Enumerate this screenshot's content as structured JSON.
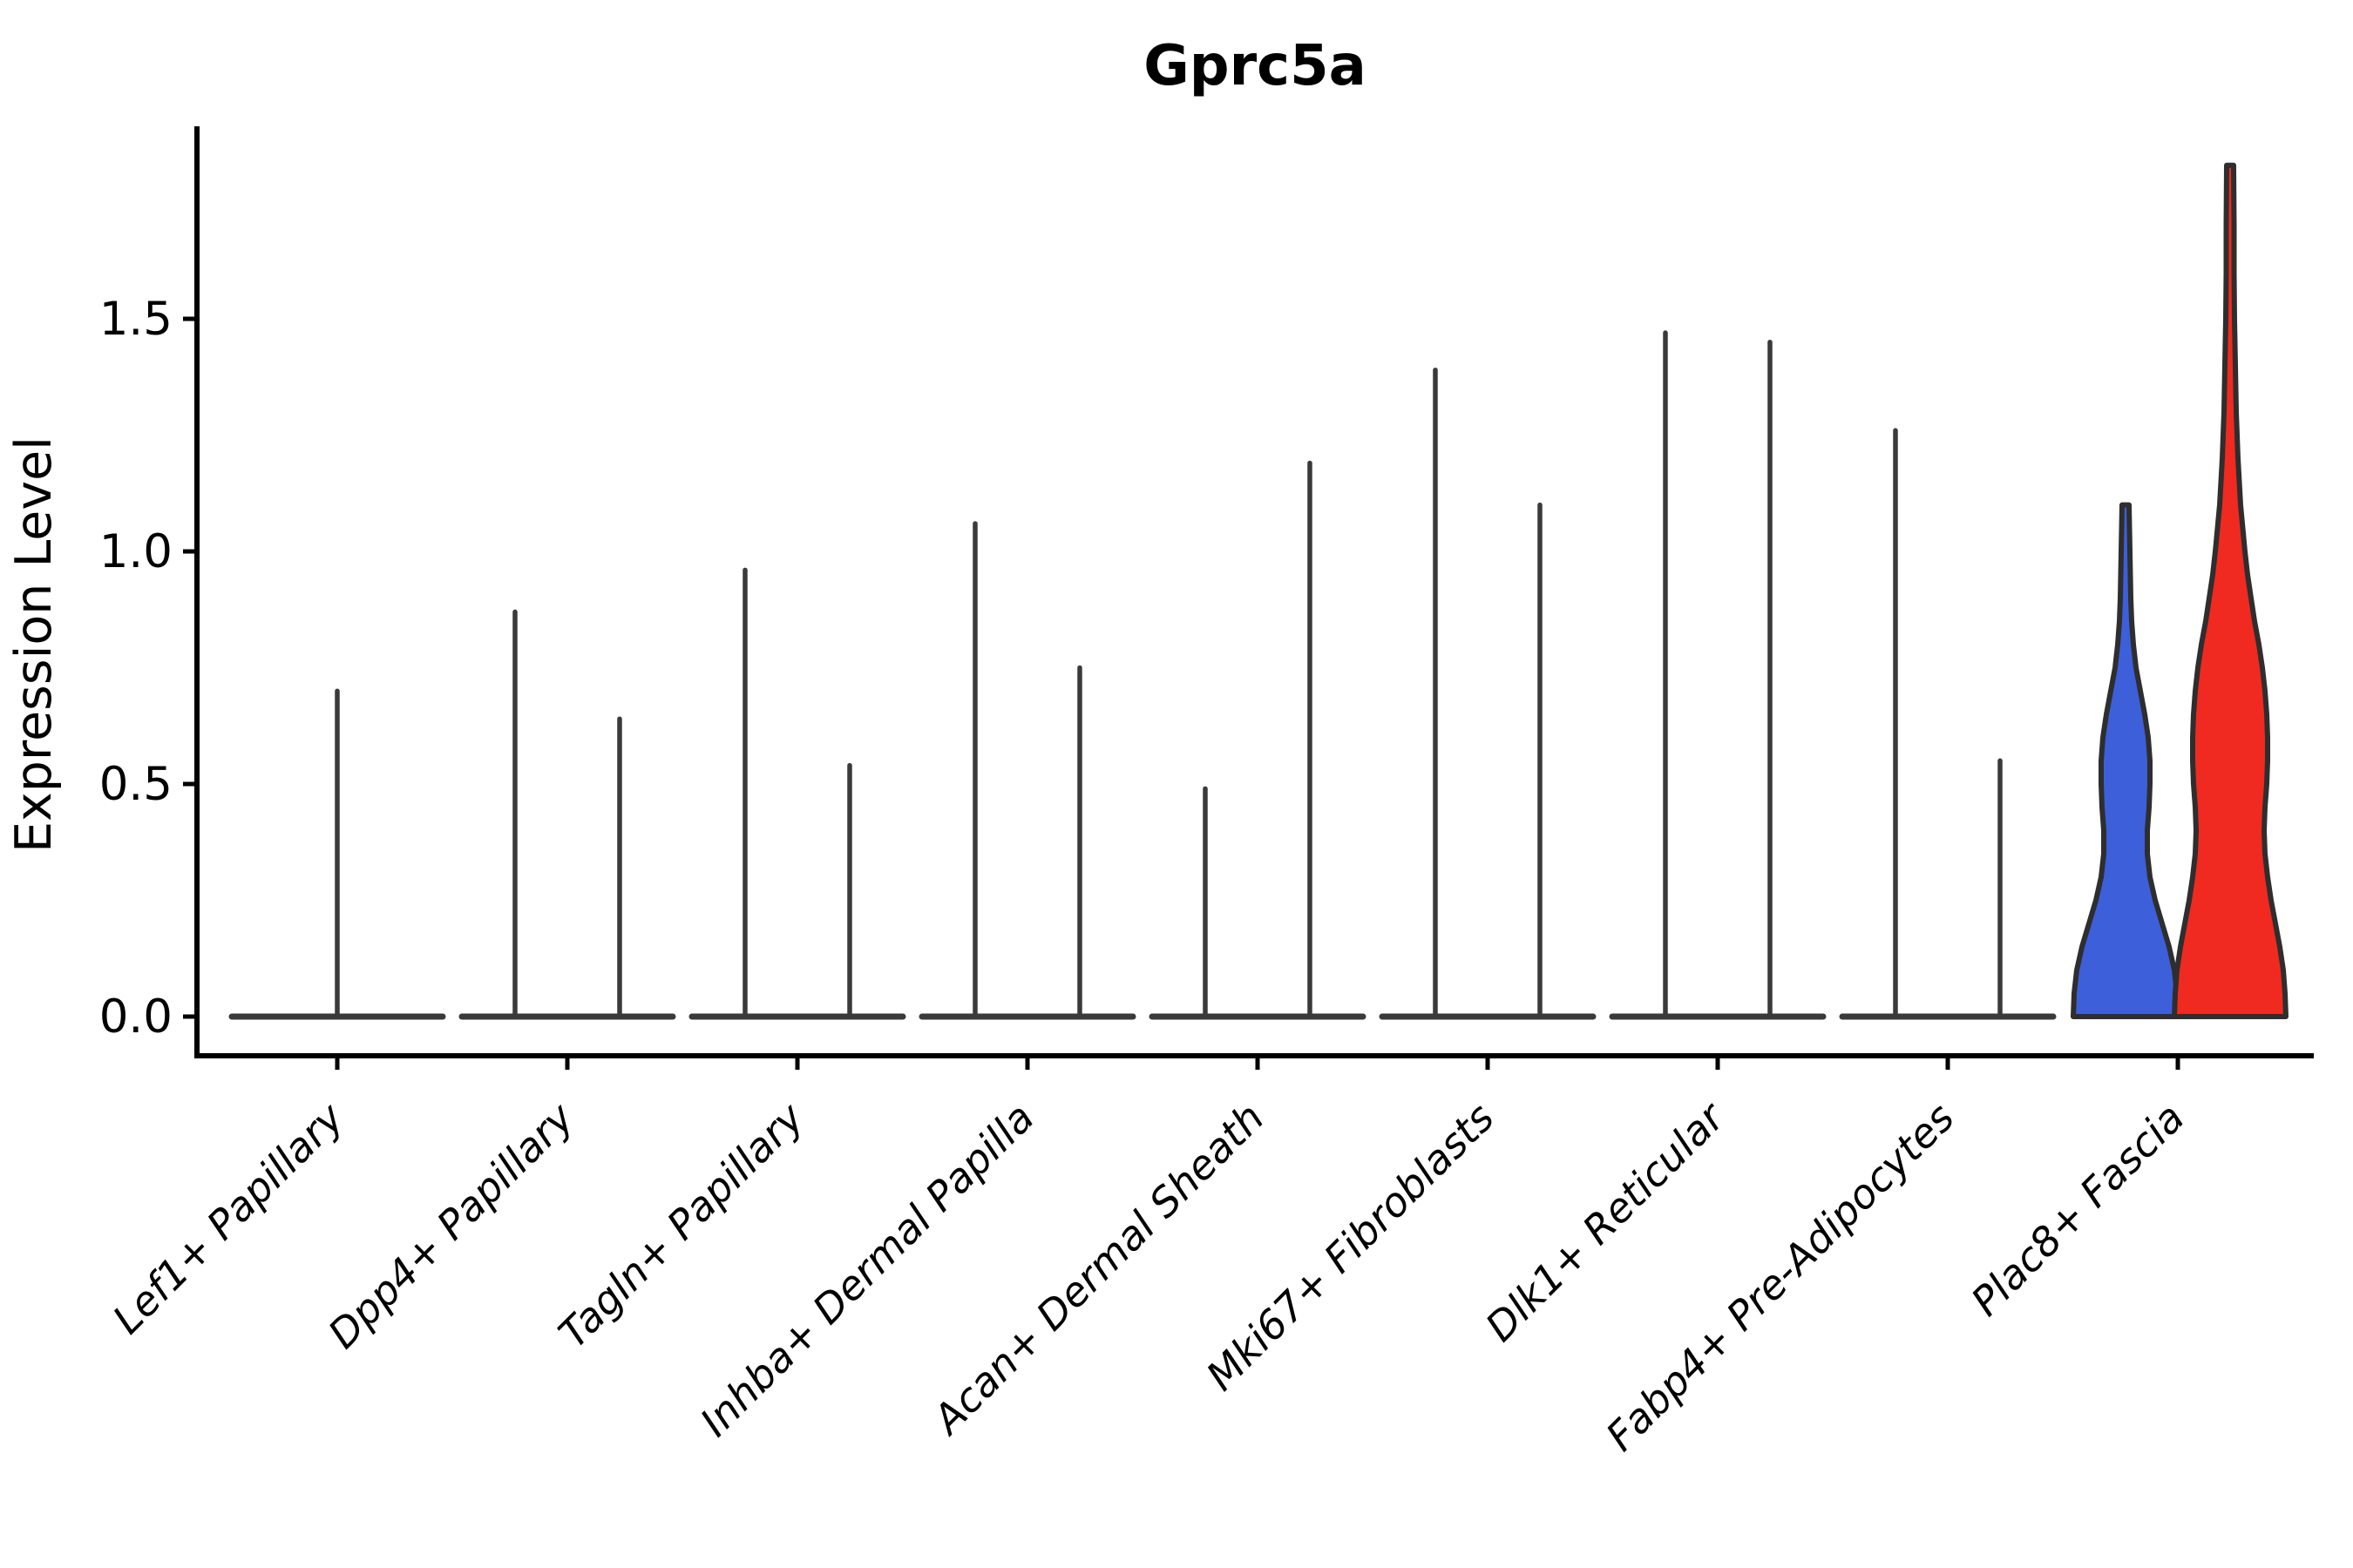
{
  "chart_data": {
    "type": "violin",
    "title": "Gprc5a",
    "ylabel": "Expression Level",
    "xlabel": "",
    "grid": false,
    "legend_position": "none",
    "ylim": [
      -0.084,
      1.91
    ],
    "ytick_labels": [
      "0.0",
      "0.5",
      "1.0",
      "1.5"
    ],
    "ytick_values": [
      0.0,
      0.5,
      1.0,
      1.5
    ],
    "categories": [
      "Lef1+ Papillary",
      "Dpp4+ Papillary",
      "Tagln+ Papillary",
      "Inhba+ Dermal Papilla",
      "Acan+ Dermal Sheath",
      "Mki67+ Fibroblasts",
      "Dlk1+ Reticular",
      "Fabp4+ Pre-Adipocytes",
      "Plac8+ Fascia"
    ],
    "description": "Violin plot of Gprc5a expression per fibroblast cluster; most clusters collapse to a baseline at 0 with a thin density spike up to the max expressed cell; Plac8+ Fascia shows two filled violins (blue and red).",
    "groups": [
      {
        "category": "Lef1+ Papillary",
        "violins": [
          {
            "kind": "spike",
            "position": "center",
            "max": 0.7
          }
        ]
      },
      {
        "category": "Dpp4+ Papillary",
        "violins": [
          {
            "kind": "spike",
            "position": "left",
            "max": 0.87
          },
          {
            "kind": "spike",
            "position": "right",
            "max": 0.64
          }
        ]
      },
      {
        "category": "Tagln+ Papillary",
        "violins": [
          {
            "kind": "spike",
            "position": "left",
            "max": 0.96
          },
          {
            "kind": "spike",
            "position": "right",
            "max": 0.54
          }
        ]
      },
      {
        "category": "Inhba+ Dermal Papilla",
        "violins": [
          {
            "kind": "spike",
            "position": "left",
            "max": 1.06
          },
          {
            "kind": "spike",
            "position": "right",
            "max": 0.75
          }
        ]
      },
      {
        "category": "Acan+ Dermal Sheath",
        "violins": [
          {
            "kind": "spike",
            "position": "left",
            "max": 0.49
          },
          {
            "kind": "spike",
            "position": "right",
            "max": 1.19
          }
        ]
      },
      {
        "category": "Mki67+ Fibroblasts",
        "violins": [
          {
            "kind": "spike",
            "position": "left",
            "max": 1.39
          },
          {
            "kind": "spike",
            "position": "right",
            "max": 1.1
          }
        ]
      },
      {
        "category": "Dlk1+ Reticular",
        "violins": [
          {
            "kind": "spike",
            "position": "left",
            "max": 1.47
          },
          {
            "kind": "spike",
            "position": "right",
            "max": 1.45
          }
        ]
      },
      {
        "category": "Fabp4+ Pre-Adipocytes",
        "violins": [
          {
            "kind": "spike",
            "position": "left",
            "max": 1.26
          },
          {
            "kind": "spike",
            "position": "right",
            "max": 0.55
          }
        ]
      },
      {
        "category": "Plac8+ Fascia",
        "violins": [
          {
            "kind": "filled",
            "position": "left",
            "max": 1.1,
            "fill": "#3D5FD9",
            "profile": [
              [
                0,
                60
              ],
              [
                0.05,
                59
              ],
              [
                0.1,
                56
              ],
              [
                0.15,
                50
              ],
              [
                0.2,
                42
              ],
              [
                0.25,
                34
              ],
              [
                0.3,
                28
              ],
              [
                0.35,
                25
              ],
              [
                0.4,
                25
              ],
              [
                0.45,
                27
              ],
              [
                0.5,
                28
              ],
              [
                0.55,
                28
              ],
              [
                0.6,
                26
              ],
              [
                0.65,
                22
              ],
              [
                0.7,
                17
              ],
              [
                0.75,
                12
              ],
              [
                0.8,
                9
              ],
              [
                0.85,
                7
              ],
              [
                0.9,
                6
              ],
              [
                1.0,
                5
              ],
              [
                1.1,
                4
              ]
            ]
          },
          {
            "kind": "filled",
            "position": "right",
            "max": 1.83,
            "fill": "#F02A20",
            "profile": [
              [
                0,
                64
              ],
              [
                0.05,
                63
              ],
              [
                0.1,
                61
              ],
              [
                0.15,
                57
              ],
              [
                0.2,
                52
              ],
              [
                0.25,
                47
              ],
              [
                0.3,
                43
              ],
              [
                0.35,
                40
              ],
              [
                0.4,
                39
              ],
              [
                0.45,
                40
              ],
              [
                0.5,
                42
              ],
              [
                0.55,
                43
              ],
              [
                0.6,
                43
              ],
              [
                0.65,
                42
              ],
              [
                0.7,
                40
              ],
              [
                0.75,
                37
              ],
              [
                0.8,
                33
              ],
              [
                0.85,
                28
              ],
              [
                0.9,
                24
              ],
              [
                0.95,
                20
              ],
              [
                1.0,
                17
              ],
              [
                1.1,
                12
              ],
              [
                1.2,
                9
              ],
              [
                1.3,
                7
              ],
              [
                1.4,
                6
              ],
              [
                1.5,
                5
              ],
              [
                1.6,
                4.5
              ],
              [
                1.7,
                4.5
              ],
              [
                1.83,
                4
              ]
            ]
          }
        ]
      }
    ],
    "colors": {
      "spike_line": "#3a3a3a",
      "baseline": "#3a3a3a",
      "violin_edge": "#2e2e2e",
      "axis": "#000000",
      "blue_fill": "#3D5FD9",
      "red_fill": "#F02A20"
    }
  }
}
